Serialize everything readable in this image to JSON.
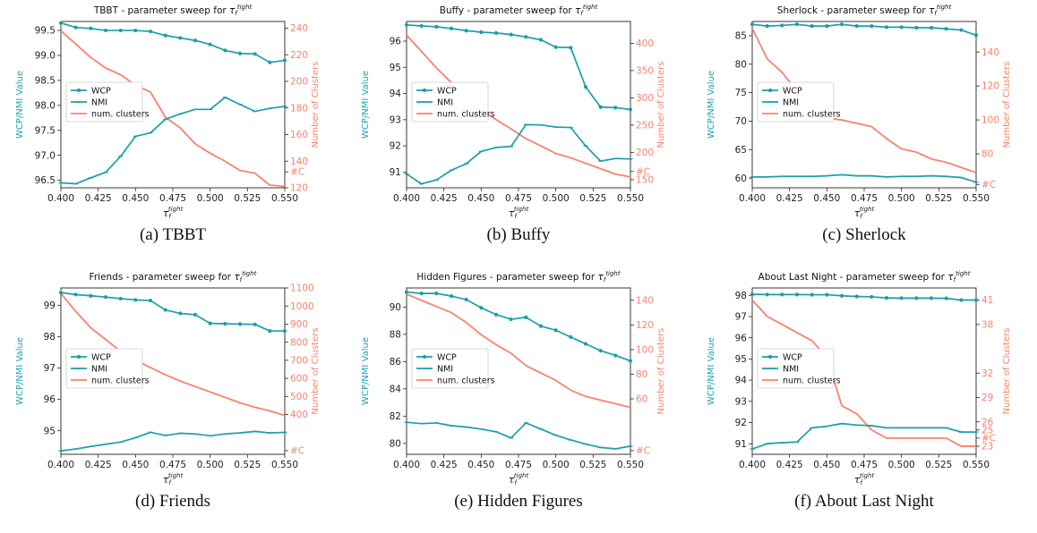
{
  "colors": {
    "wcp": "#1b9eab",
    "nmi": "#1b9eab",
    "clusters": "#f7836c",
    "right_axis": "#f4836b"
  },
  "legend": [
    "WCP",
    "NMI",
    "num. clusters"
  ],
  "left_axis_label": "WCP/NMI Value",
  "right_axis_label": "Number of Clusters",
  "x_axis_label": "τf tight",
  "chart_data": [
    {
      "type": "line",
      "title": "TBBT -  parameter sweep for τf tight",
      "caption": "(a) TBBT",
      "x": [
        0.4,
        0.41,
        0.42,
        0.43,
        0.44,
        0.45,
        0.46,
        0.47,
        0.48,
        0.49,
        0.5,
        0.51,
        0.52,
        0.53,
        0.54,
        0.55
      ],
      "x_ticks": [
        "0.400",
        "0.425",
        "0.450",
        "0.475",
        "0.500",
        "0.525",
        "0.550"
      ],
      "xlim": [
        0.4,
        0.55
      ],
      "ylim_left": [
        96.35,
        99.68
      ],
      "left_ticks": [
        96.5,
        97.0,
        97.5,
        98.0,
        98.5,
        99.0,
        99.5
      ],
      "left_tick_labels": [
        "96.5",
        "97.0",
        "97.5",
        "98.0",
        "98.5",
        "99.0",
        "99.5"
      ],
      "ylim_right": [
        120,
        245
      ],
      "right_ticks": [
        120,
        140,
        160,
        180,
        200,
        220,
        240
      ],
      "right_tick_labels": [
        "120",
        "140",
        "160",
        "180",
        "200",
        "220",
        "240"
      ],
      "right_c_marker": 132,
      "right_c_label": "#C",
      "series": [
        {
          "name": "WCP",
          "values": [
            99.65,
            99.56,
            99.54,
            99.5,
            99.5,
            99.5,
            99.48,
            99.4,
            99.35,
            99.3,
            99.22,
            99.1,
            99.04,
            99.03,
            98.86,
            98.9
          ]
        },
        {
          "name": "NMI",
          "values": [
            96.45,
            96.43,
            96.55,
            96.66,
            96.98,
            97.38,
            97.45,
            97.72,
            97.83,
            97.92,
            97.92,
            98.16,
            98.02,
            97.88,
            97.94,
            97.98
          ]
        },
        {
          "name": "num. clusters",
          "values": [
            238,
            228,
            218,
            210,
            205,
            197,
            192,
            173,
            165,
            153,
            146,
            140,
            133,
            131,
            122,
            121
          ]
        }
      ]
    },
    {
      "type": "line",
      "title": "Buffy -  parameter sweep for τf tight",
      "caption": "(b) Buffy",
      "x": [
        0.4,
        0.41,
        0.42,
        0.43,
        0.44,
        0.45,
        0.46,
        0.47,
        0.48,
        0.49,
        0.5,
        0.51,
        0.52,
        0.53,
        0.54,
        0.55
      ],
      "x_ticks": [
        "0.400",
        "0.425",
        "0.450",
        "0.475",
        "0.500",
        "0.525",
        "0.550"
      ],
      "xlim": [
        0.4,
        0.55
      ],
      "ylim_left": [
        90.4,
        96.75
      ],
      "left_ticks": [
        91,
        92,
        93,
        94,
        95,
        96
      ],
      "left_tick_labels": [
        "91",
        "92",
        "93",
        "94",
        "95",
        "96"
      ],
      "ylim_right": [
        135,
        440
      ],
      "right_ticks": [
        150,
        200,
        250,
        300,
        350,
        400
      ],
      "right_tick_labels": [
        "150",
        "200",
        "250",
        "300",
        "350",
        "400"
      ],
      "right_c_marker": 165,
      "right_c_label": "#C",
      "series": [
        {
          "name": "WCP",
          "values": [
            96.62,
            96.58,
            96.55,
            96.48,
            96.4,
            96.34,
            96.31,
            96.25,
            96.16,
            96.05,
            95.77,
            95.75,
            94.25,
            93.48,
            93.46,
            93.39
          ]
        },
        {
          "name": "NMI",
          "values": [
            90.93,
            90.55,
            90.7,
            91.07,
            91.32,
            91.79,
            91.94,
            91.98,
            92.81,
            92.8,
            92.72,
            92.7,
            92.0,
            91.42,
            91.52,
            91.5
          ]
        },
        {
          "name": "num. clusters",
          "values": [
            415,
            385,
            355,
            328,
            300,
            278,
            260,
            243,
            225,
            212,
            198,
            190,
            180,
            170,
            160,
            155
          ]
        }
      ]
    },
    {
      "type": "line",
      "title": "Sherlock -  parameter sweep for τf tight",
      "caption": "(c) Sherlock",
      "x": [
        0.4,
        0.41,
        0.42,
        0.43,
        0.44,
        0.45,
        0.46,
        0.47,
        0.48,
        0.49,
        0.5,
        0.51,
        0.52,
        0.53,
        0.54,
        0.55
      ],
      "x_ticks": [
        "0.400",
        "0.425",
        "0.450",
        "0.475",
        "0.500",
        "0.525",
        "0.550"
      ],
      "xlim": [
        0.4,
        0.55
      ],
      "ylim_left": [
        58.3,
        87.5
      ],
      "left_ticks": [
        60,
        65,
        70,
        75,
        80,
        85
      ],
      "left_tick_labels": [
        "60",
        "65",
        "70",
        "75",
        "80",
        "85"
      ],
      "ylim_right": [
        60,
        158
      ],
      "right_ticks": [
        80,
        100,
        120,
        140
      ],
      "right_tick_labels": [
        "80",
        "100",
        "120",
        "140"
      ],
      "right_c_marker": 62,
      "right_c_label": "#C",
      "series": [
        {
          "name": "WCP",
          "values": [
            87.0,
            86.7,
            86.8,
            87.0,
            86.7,
            86.7,
            87.0,
            86.7,
            86.7,
            86.5,
            86.5,
            86.4,
            86.4,
            86.2,
            86.0,
            85.1
          ]
        },
        {
          "name": "NMI",
          "values": [
            60.2,
            60.2,
            60.3,
            60.3,
            60.3,
            60.4,
            60.6,
            60.4,
            60.4,
            60.2,
            60.3,
            60.3,
            60.4,
            60.3,
            60.1,
            59.3
          ]
        },
        {
          "name": "num. clusters",
          "values": [
            154,
            136,
            128,
            117,
            107,
            101,
            100,
            98,
            96,
            89,
            83,
            81,
            77,
            75,
            72,
            69
          ]
        }
      ]
    },
    {
      "type": "line",
      "title": "Friends -  parameter sweep for τf tight",
      "caption": "(d) Friends",
      "x": [
        0.4,
        0.41,
        0.42,
        0.43,
        0.44,
        0.45,
        0.46,
        0.47,
        0.48,
        0.49,
        0.5,
        0.51,
        0.52,
        0.53,
        0.54,
        0.55
      ],
      "x_ticks": [
        "0.400",
        "0.425",
        "0.450",
        "0.475",
        "0.500",
        "0.525",
        "0.550"
      ],
      "xlim": [
        0.4,
        0.55
      ],
      "ylim_left": [
        94.25,
        99.55
      ],
      "left_ticks": [
        95,
        96,
        97,
        98,
        99
      ],
      "left_tick_labels": [
        "95",
        "96",
        "97",
        "98",
        "99"
      ],
      "ylim_right": [
        180,
        1100
      ],
      "right_ticks": [
        400,
        500,
        600,
        700,
        800,
        900,
        1000,
        1100
      ],
      "right_tick_labels": [
        "400",
        "500",
        "600",
        "700",
        "800",
        "900",
        "1000",
        "1100"
      ],
      "right_c_marker": 200,
      "right_c_label": "#C",
      "series": [
        {
          "name": "WCP",
          "values": [
            99.4,
            99.34,
            99.3,
            99.26,
            99.21,
            99.17,
            99.15,
            98.85,
            98.74,
            98.7,
            98.42,
            98.41,
            98.4,
            98.39,
            98.18,
            98.18
          ]
        },
        {
          "name": "NMI",
          "values": [
            94.36,
            94.42,
            94.5,
            94.57,
            94.64,
            94.78,
            94.95,
            94.85,
            94.92,
            94.9,
            94.84,
            94.9,
            94.93,
            94.98,
            94.93,
            94.95
          ]
        },
        {
          "name": "num. clusters",
          "values": [
            1070,
            970,
            880,
            815,
            750,
            700,
            660,
            620,
            585,
            555,
            525,
            495,
            465,
            440,
            420,
            395
          ]
        }
      ]
    },
    {
      "type": "line",
      "title": "Hidden Figures -  parameter sweep for τf tight",
      "caption": "(e) Hidden Figures",
      "x": [
        0.4,
        0.41,
        0.42,
        0.43,
        0.44,
        0.45,
        0.46,
        0.47,
        0.48,
        0.49,
        0.5,
        0.51,
        0.52,
        0.53,
        0.54,
        0.55
      ],
      "x_ticks": [
        "0.400",
        "0.425",
        "0.450",
        "0.475",
        "0.500",
        "0.525",
        "0.550"
      ],
      "xlim": [
        0.4,
        0.55
      ],
      "ylim_left": [
        79.2,
        91.4
      ],
      "left_ticks": [
        80,
        82,
        84,
        86,
        88,
        90
      ],
      "left_tick_labels": [
        "80",
        "82",
        "84",
        "86",
        "88",
        "90"
      ],
      "ylim_right": [
        15,
        150
      ],
      "right_ticks": [
        60,
        80,
        100,
        120,
        140
      ],
      "right_tick_labels": [
        "60",
        "80",
        "100",
        "120",
        "140"
      ],
      "right_c_marker": 18,
      "right_c_label": "#C",
      "series": [
        {
          "name": "WCP",
          "values": [
            91.1,
            91.0,
            91.0,
            90.8,
            90.55,
            89.95,
            89.45,
            89.1,
            89.25,
            88.6,
            88.3,
            87.8,
            87.3,
            86.8,
            86.45,
            86.05
          ]
        },
        {
          "name": "NMI",
          "values": [
            81.55,
            81.45,
            81.5,
            81.3,
            81.2,
            81.05,
            80.85,
            80.4,
            81.5,
            81.05,
            80.6,
            80.25,
            79.95,
            79.7,
            79.6,
            79.8
          ]
        },
        {
          "name": "num. clusters",
          "values": [
            145,
            140,
            135,
            130,
            122,
            112,
            104,
            97,
            87,
            81,
            75,
            67,
            62,
            59,
            56,
            53
          ]
        }
      ]
    },
    {
      "type": "line",
      "title": "About Last Night -  parameter sweep for τf tight",
      "caption": "(f) About Last Night",
      "x": [
        0.4,
        0.41,
        0.42,
        0.43,
        0.44,
        0.45,
        0.46,
        0.47,
        0.48,
        0.49,
        0.5,
        0.51,
        0.52,
        0.53,
        0.54,
        0.55
      ],
      "x_ticks": [
        "0.400",
        "0.425",
        "0.450",
        "0.475",
        "0.500",
        "0.525",
        "0.550"
      ],
      "xlim": [
        0.4,
        0.55
      ],
      "ylim_left": [
        90.5,
        98.35
      ],
      "left_ticks": [
        91,
        92,
        93,
        94,
        95,
        96,
        97,
        98
      ],
      "left_tick_labels": [
        "91",
        "92",
        "93",
        "94",
        "95",
        "96",
        "97",
        "98"
      ],
      "ylim_right": [
        22,
        42.5
      ],
      "right_ticks": [
        23,
        25,
        26,
        29,
        32,
        38,
        41
      ],
      "right_tick_labels": [
        "23",
        "25",
        "26",
        "29",
        "32",
        "38",
        "41"
      ],
      "right_c_marker": 24,
      "right_c_label": "#C",
      "series": [
        {
          "name": "WCP",
          "values": [
            98.05,
            98.04,
            98.04,
            98.04,
            98.03,
            98.03,
            97.98,
            97.95,
            97.93,
            97.88,
            97.87,
            97.87,
            97.87,
            97.86,
            97.78,
            97.78
          ]
        },
        {
          "name": "NMI",
          "values": [
            90.75,
            91.0,
            91.05,
            91.08,
            91.75,
            91.82,
            91.95,
            91.88,
            91.85,
            91.75,
            91.75,
            91.75,
            91.75,
            91.75,
            91.55,
            91.55
          ]
        },
        {
          "name": "num. clusters",
          "values": [
            41,
            39,
            38,
            37,
            36,
            34,
            28,
            27,
            25,
            24,
            24,
            24,
            24,
            24,
            23,
            23
          ]
        }
      ]
    }
  ]
}
